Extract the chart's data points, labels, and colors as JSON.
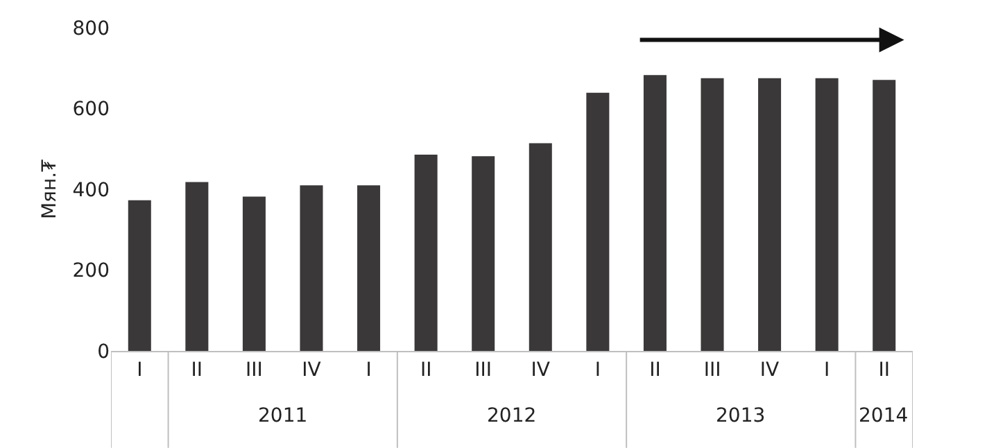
{
  "chart_data": {
    "type": "bar",
    "ylabel": "Мян.₮",
    "categories": [
      "I",
      "II",
      "III",
      "IV",
      "I",
      "II",
      "III",
      "IV",
      "I",
      "II",
      "III",
      "IV",
      "I",
      "II"
    ],
    "annotations": [
      "2011",
      "2012",
      "2013",
      "2014"
    ],
    "series": [
      {
        "color": "#3a3839",
        "values": [
          373,
          418,
          382,
          410,
          410,
          486,
          482,
          514,
          639,
          683,
          675,
          675,
          675,
          671
        ]
      }
    ],
    "ylim": [
      0,
      800
    ],
    "yticks": [
      0,
      200,
      400,
      600,
      800
    ]
  }
}
